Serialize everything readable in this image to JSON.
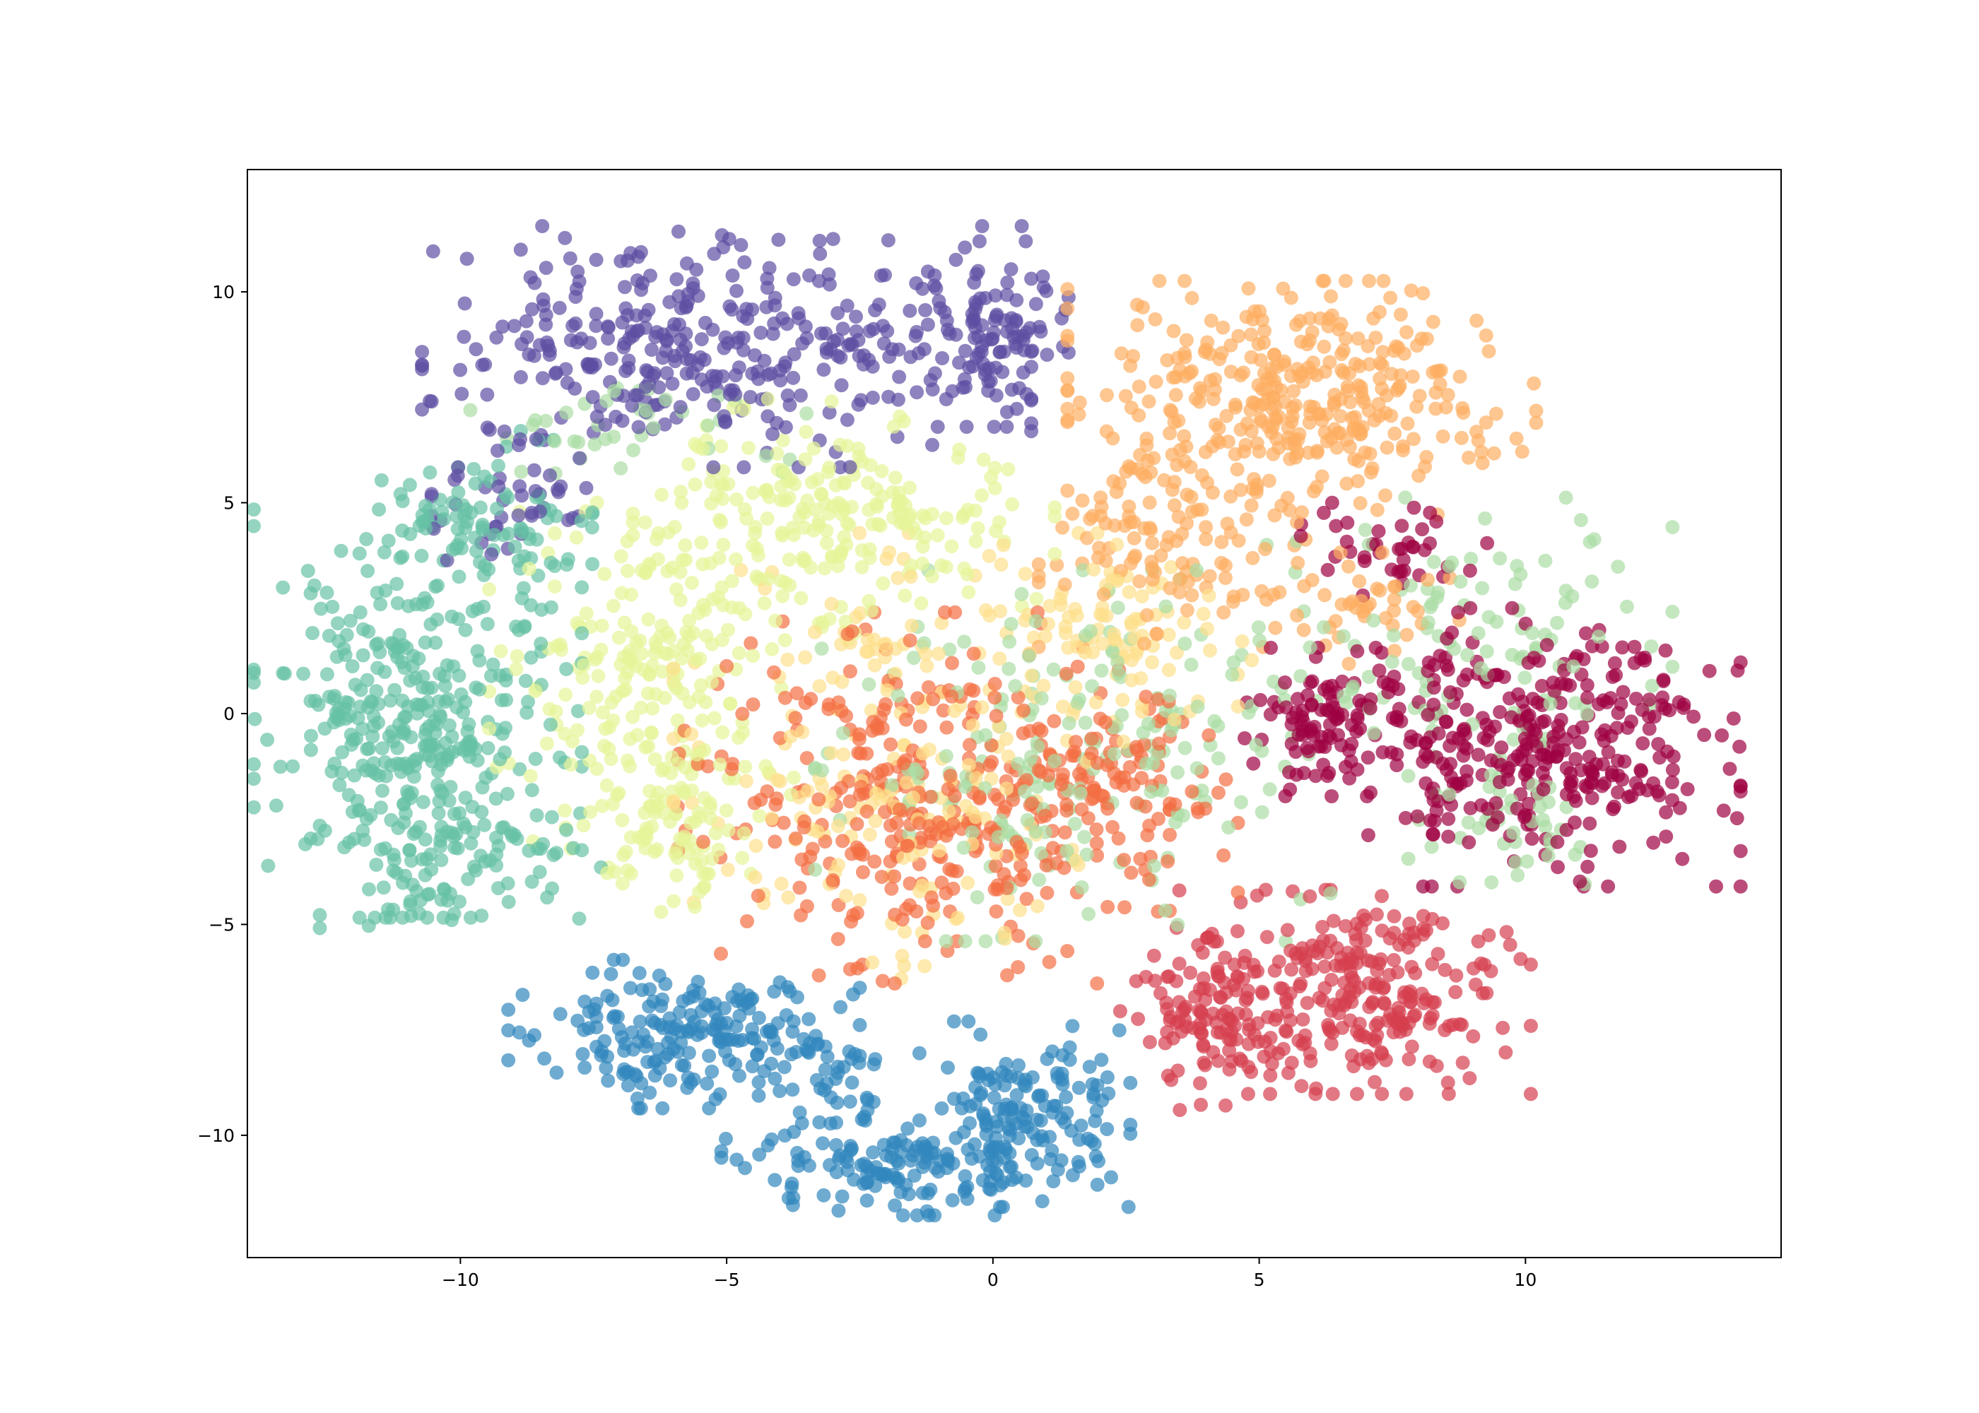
{
  "chart_data": {
    "type": "scatter",
    "title": "",
    "xlabel": "",
    "ylabel": "",
    "xlim": [
      -14,
      14.8
    ],
    "ylim": [
      -12.9,
      12.9
    ],
    "xticks": [
      -10,
      -5,
      0,
      5,
      10
    ],
    "yticks": [
      -10,
      -5,
      0,
      5,
      10
    ],
    "xtick_labels": [
      "−10",
      "−5",
      "0",
      "5",
      "10"
    ],
    "ytick_labels": [
      "−10",
      "−5",
      "0",
      "5",
      "10"
    ],
    "grid": false,
    "legend": null,
    "marker_opacity": 0.7,
    "note": "approximate cluster regions of a dense 10-class 2-D embedding scatter (centers, spreads in data units, point counts)",
    "clusters": [
      {
        "color": "#5e4fa2",
        "regions": [
          {
            "cx": -5.0,
            "cy": 8.7,
            "sx": 2.6,
            "sy": 1.3,
            "n": 360
          },
          {
            "cx": 0.1,
            "cy": 9.0,
            "sx": 0.6,
            "sy": 1.0,
            "n": 90
          },
          {
            "cx": -9.0,
            "cy": 5.2,
            "sx": 0.7,
            "sy": 1.0,
            "n": 50
          }
        ]
      },
      {
        "color": "#66c2a5",
        "regions": [
          {
            "cx": -10.8,
            "cy": 0.0,
            "sx": 1.4,
            "sy": 2.2,
            "n": 380
          },
          {
            "cx": -9.5,
            "cy": 4.5,
            "sx": 0.9,
            "sy": 1.0,
            "n": 80
          },
          {
            "cx": -10.0,
            "cy": -3.7,
            "sx": 1.2,
            "sy": 0.7,
            "n": 70
          }
        ]
      },
      {
        "color": "#e6f598",
        "regions": [
          {
            "cx": -2.8,
            "cy": 4.6,
            "sx": 1.8,
            "sy": 1.3,
            "n": 230
          },
          {
            "cx": -6.6,
            "cy": 0.6,
            "sx": 1.3,
            "sy": 2.0,
            "n": 230
          },
          {
            "cx": -5.8,
            "cy": -2.6,
            "sx": 0.8,
            "sy": 1.1,
            "n": 60
          }
        ]
      },
      {
        "color": "#3288bd",
        "regions": [
          {
            "cx": -5.8,
            "cy": -7.6,
            "sx": 1.5,
            "sy": 0.8,
            "n": 200
          },
          {
            "cx": 0.6,
            "cy": -9.5,
            "sx": 0.9,
            "sy": 1.0,
            "n": 150
          },
          {
            "cx": -1.8,
            "cy": -10.8,
            "sx": 1.5,
            "sy": 0.5,
            "n": 130
          },
          {
            "cx": -3.2,
            "cy": -8.9,
            "sx": 0.6,
            "sy": 0.7,
            "n": 40
          }
        ]
      },
      {
        "color": "#fdae61",
        "regions": [
          {
            "cx": 5.8,
            "cy": 7.4,
            "sx": 2.0,
            "sy": 1.3,
            "n": 360
          },
          {
            "cx": 3.5,
            "cy": 4.0,
            "sx": 1.2,
            "sy": 1.1,
            "n": 110
          },
          {
            "cx": 7.0,
            "cy": 2.5,
            "sx": 0.8,
            "sy": 0.6,
            "n": 40
          }
        ]
      },
      {
        "color": "#9e0142",
        "regions": [
          {
            "cx": 10.3,
            "cy": -0.8,
            "sx": 1.7,
            "sy": 1.5,
            "n": 330
          },
          {
            "cx": 6.3,
            "cy": -0.2,
            "sx": 0.9,
            "sy": 0.8,
            "n": 110
          },
          {
            "cx": 7.3,
            "cy": 3.9,
            "sx": 0.9,
            "sy": 0.5,
            "n": 40
          }
        ]
      },
      {
        "color": "#d53e4f",
        "regions": [
          {
            "cx": 6.8,
            "cy": -6.6,
            "sx": 1.5,
            "sy": 1.1,
            "n": 280
          },
          {
            "cx": 3.9,
            "cy": -7.2,
            "sx": 0.7,
            "sy": 1.0,
            "n": 90
          }
        ]
      },
      {
        "color": "#f46d43",
        "regions": [
          {
            "cx": -1.3,
            "cy": -2.0,
            "sx": 2.1,
            "sy": 2.0,
            "n": 350
          },
          {
            "cx": 2.4,
            "cy": -1.6,
            "sx": 1.0,
            "sy": 1.2,
            "n": 80
          }
        ]
      },
      {
        "color": "#fee08b",
        "regions": [
          {
            "cx": -1.6,
            "cy": -1.0,
            "sx": 2.0,
            "sy": 2.4,
            "n": 220
          },
          {
            "cx": 2.3,
            "cy": 2.0,
            "sx": 1.2,
            "sy": 1.0,
            "n": 80
          }
        ]
      },
      {
        "color": "#abdda4",
        "regions": [
          {
            "cx": 1.5,
            "cy": -1.0,
            "sx": 2.2,
            "sy": 2.0,
            "n": 200
          },
          {
            "cx": 8.8,
            "cy": 1.6,
            "sx": 1.8,
            "sy": 1.6,
            "n": 120
          },
          {
            "cx": -6.8,
            "cy": 6.8,
            "sx": 1.5,
            "sy": 0.6,
            "n": 40
          },
          {
            "cx": 10.0,
            "cy": -2.8,
            "sx": 1.0,
            "sy": 0.6,
            "n": 40
          }
        ]
      }
    ]
  }
}
